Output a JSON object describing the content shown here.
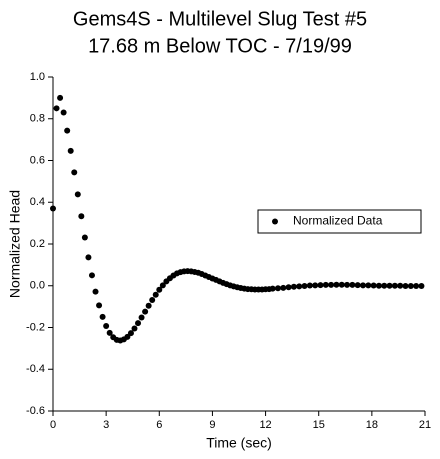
{
  "chart_data": {
    "type": "scatter",
    "title": "Gems4S - Multilevel Slug Test #5",
    "subtitle": "17.68 m Below TOC - 7/19/99",
    "x_label": "Time (sec)",
    "y_label": "Normalized Head",
    "xlim": [
      0,
      21
    ],
    "ylim": [
      -0.6,
      1.0
    ],
    "xticks": [
      0,
      3,
      6,
      9,
      12,
      15,
      18,
      21
    ],
    "yticks": [
      -0.6,
      -0.4,
      -0.2,
      {
        "value": 0,
        "label": "0.0"
      },
      0.2,
      0.4,
      0.6,
      0.8,
      {
        "value": 1,
        "label": "1.0"
      }
    ],
    "grid": false,
    "legend": "right",
    "series": [
      {
        "name": "Normalized Data",
        "color": "#000000",
        "x": [
          0,
          0.2,
          0.4,
          0.6,
          0.8,
          1.0,
          1.2,
          1.4,
          1.6,
          1.8,
          2.0,
          2.2,
          2.4,
          2.6,
          2.8,
          3.0,
          3.2,
          3.4,
          3.6,
          3.8,
          4.0,
          4.2,
          4.4,
          4.6,
          4.8,
          5.0,
          5.2,
          5.4,
          5.6,
          5.8,
          6.0,
          6.2,
          6.4,
          6.6,
          6.8,
          7.0,
          7.2,
          7.4,
          7.6,
          7.8,
          8.0,
          8.2,
          8.4,
          8.6,
          8.8,
          9.0,
          9.2,
          9.4,
          9.6,
          9.8,
          10.0,
          10.2,
          10.4,
          10.6,
          10.8,
          11.0,
          11.2,
          11.4,
          11.6,
          11.8,
          12.0,
          12.2,
          12.4,
          12.7,
          13.0,
          13.3,
          13.6,
          13.9,
          14.2,
          14.5,
          14.8,
          15.1,
          15.4,
          15.7,
          16.0,
          16.3,
          16.6,
          16.9,
          17.2,
          17.5,
          17.8,
          18.1,
          18.4,
          18.7,
          19.0,
          19.3,
          19.6,
          19.9,
          20.2,
          20.5,
          20.8
        ],
        "values": [
          0.37,
          0.85,
          0.9,
          0.83,
          0.743,
          0.646,
          0.543,
          0.438,
          0.333,
          0.231,
          0.136,
          0.05,
          -0.028,
          -0.094,
          -0.149,
          -0.193,
          -0.226,
          -0.247,
          -0.259,
          -0.262,
          -0.257,
          -0.245,
          -0.227,
          -0.205,
          -0.179,
          -0.152,
          -0.124,
          -0.096,
          -0.068,
          -0.043,
          -0.019,
          0.002,
          0.021,
          0.036,
          0.049,
          0.059,
          0.065,
          0.069,
          0.07,
          0.069,
          0.066,
          0.062,
          0.056,
          0.049,
          0.042,
          0.035,
          0.028,
          0.021,
          0.014,
          0.008,
          0.002,
          -0.003,
          -0.007,
          -0.011,
          -0.014,
          -0.016,
          -0.017,
          -0.018,
          -0.018,
          -0.018,
          -0.017,
          -0.016,
          -0.014,
          -0.012,
          -0.01,
          -0.007,
          -0.005,
          -0.003,
          -0.001,
          0.001,
          0.002,
          0.003,
          0.004,
          0.004,
          0.005,
          0.005,
          0.004,
          0.004,
          0.003,
          0.002,
          0.002,
          0.001,
          0,
          0,
          0,
          0,
          0,
          -0.001,
          -0.001,
          -0.001,
          -0.001
        ]
      }
    ]
  }
}
